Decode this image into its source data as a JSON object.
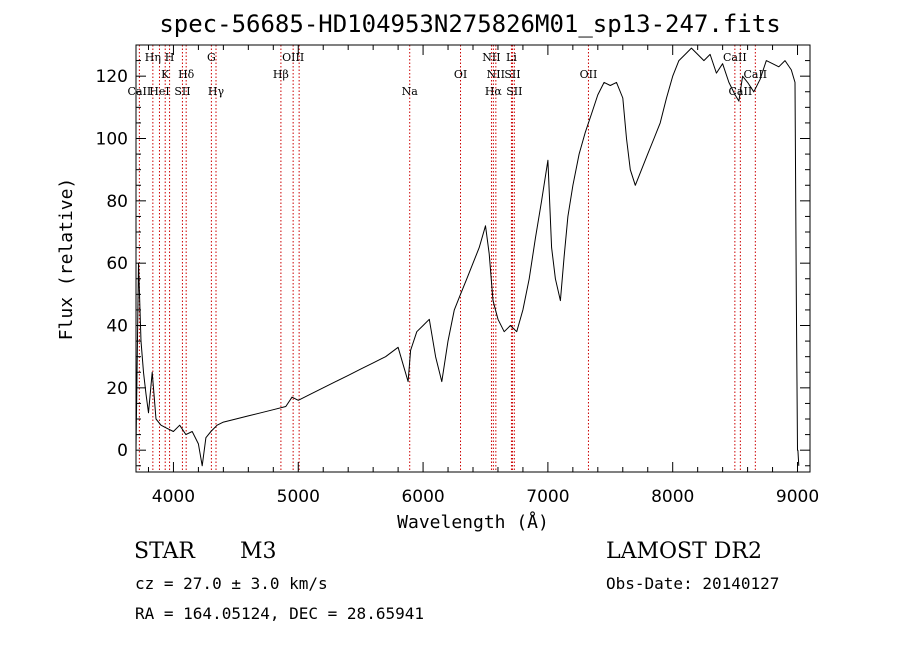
{
  "chart_data": {
    "type": "line",
    "title": "spec-56685-HD104953N275826M01_sp13-247.fits",
    "xlabel": "Wavelength (Å)",
    "ylabel": "Flux (relative)",
    "xlim": [
      3700,
      9100
    ],
    "ylim": [
      -7,
      130
    ],
    "x_ticks": [
      4000,
      5000,
      6000,
      7000,
      8000,
      9000
    ],
    "y_ticks": [
      0,
      20,
      40,
      60,
      80,
      100,
      120
    ],
    "grid": false,
    "line_color": "#000000",
    "marker_color": "#cc0000",
    "spectrum": {
      "name": "Flux",
      "x": [
        3700,
        3720,
        3740,
        3760,
        3780,
        3800,
        3830,
        3860,
        3900,
        3950,
        4000,
        4050,
        4100,
        4150,
        4200,
        4230,
        4260,
        4300,
        4350,
        4400,
        4500,
        4600,
        4700,
        4800,
        4900,
        4950,
        5000,
        5100,
        5200,
        5300,
        5400,
        5500,
        5600,
        5700,
        5800,
        5880,
        5900,
        5950,
        6000,
        6050,
        6100,
        6150,
        6200,
        6250,
        6300,
        6350,
        6400,
        6450,
        6500,
        6530,
        6560,
        6600,
        6650,
        6700,
        6750,
        6800,
        6850,
        6900,
        6950,
        7000,
        7030,
        7060,
        7100,
        7130,
        7160,
        7200,
        7250,
        7300,
        7350,
        7400,
        7450,
        7500,
        7550,
        7600,
        7630,
        7660,
        7700,
        7750,
        7800,
        7850,
        7900,
        7950,
        8000,
        8050,
        8100,
        8150,
        8200,
        8250,
        8300,
        8350,
        8400,
        8450,
        8500,
        8530,
        8560,
        8600,
        8650,
        8700,
        8750,
        8800,
        8850,
        8900,
        8950,
        8980,
        8990,
        9000,
        9003,
        9010
      ],
      "y": [
        0,
        60,
        35,
        25,
        18,
        12,
        25,
        10,
        8,
        7,
        6,
        8,
        5,
        6,
        2,
        -5,
        4,
        6,
        8,
        9,
        10,
        11,
        12,
        13,
        14,
        17,
        16,
        18,
        20,
        22,
        24,
        26,
        28,
        30,
        33,
        22,
        32,
        38,
        40,
        42,
        30,
        22,
        35,
        45,
        50,
        55,
        60,
        65,
        72,
        63,
        48,
        42,
        38,
        40,
        38,
        45,
        55,
        68,
        80,
        93,
        65,
        55,
        48,
        62,
        75,
        85,
        95,
        102,
        108,
        114,
        118,
        117,
        118,
        113,
        100,
        90,
        85,
        90,
        95,
        100,
        105,
        113,
        120,
        125,
        127,
        129,
        127,
        125,
        127,
        121,
        124,
        118,
        114,
        112,
        120,
        118,
        115,
        119,
        125,
        124,
        123,
        125,
        122,
        118,
        50,
        0,
        0,
        -5
      ]
    },
    "line_markers": [
      {
        "label": "CaII",
        "wavelength": 3727,
        "tier": 2
      },
      {
        "label": "Hη",
        "wavelength": 3835,
        "tier": 0
      },
      {
        "label": "HeI",
        "wavelength": 3888,
        "tier": 2
      },
      {
        "label": "K",
        "wavelength": 3934,
        "tier": 1
      },
      {
        "label": "H",
        "wavelength": 3969,
        "tier": 0
      },
      {
        "label": "SII",
        "wavelength": 4072,
        "tier": 2
      },
      {
        "label": "Hδ",
        "wavelength": 4102,
        "tier": 1
      },
      {
        "label": "G",
        "wavelength": 4304,
        "tier": 0
      },
      {
        "label": "Hγ",
        "wavelength": 4341,
        "tier": 2
      },
      {
        "label": "Hβ",
        "wavelength": 4861,
        "tier": 1
      },
      {
        "label": "OIII",
        "wavelength": 4959,
        "tier": 0
      },
      {
        "label": "OIII",
        "wavelength": 5007,
        "tier": null
      },
      {
        "label": "Na",
        "wavelength": 5893,
        "tier": 2
      },
      {
        "label": "OI",
        "wavelength": 6300,
        "tier": 1
      },
      {
        "label": "NII",
        "wavelength": 6548,
        "tier": 0
      },
      {
        "label": "Hα",
        "wavelength": 6563,
        "tier": 2
      },
      {
        "label": "NII",
        "wavelength": 6583,
        "tier": 1
      },
      {
        "label": "Li",
        "wavelength": 6708,
        "tier": 0
      },
      {
        "label": "SII",
        "wavelength": 6716,
        "tier": 1
      },
      {
        "label": "SII",
        "wavelength": 6731,
        "tier": 2
      },
      {
        "label": "OII",
        "wavelength": 7325,
        "tier": 1
      },
      {
        "label": "CaII",
        "wavelength": 8498,
        "tier": 0
      },
      {
        "label": "CaII",
        "wavelength": 8542,
        "tier": 2
      },
      {
        "label": "CaII",
        "wavelength": 8662,
        "tier": 1
      }
    ]
  },
  "info": {
    "class": "STAR",
    "subclass": "M3",
    "survey": "LAMOST DR2",
    "redshift": "cz = 27.0 ± 3.0 km/s",
    "obs_date": "Obs-Date: 20140127",
    "coords": "RA = 164.05124, DEC =  28.65941"
  }
}
